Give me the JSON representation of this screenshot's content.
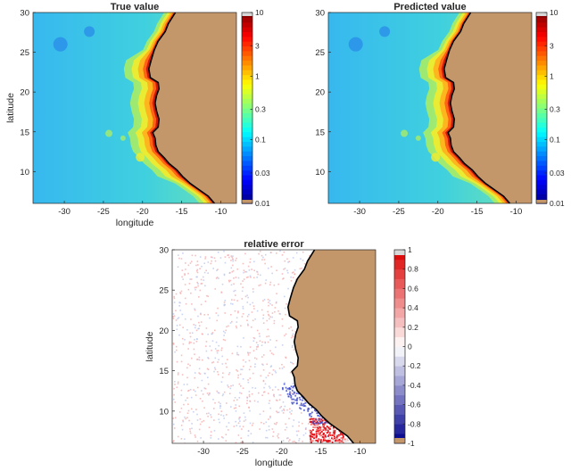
{
  "chart_data": [
    {
      "type": "heatmap",
      "title": "True value",
      "xlabel": "longitude",
      "ylabel": "latitude",
      "xlim": [
        -34,
        -8
      ],
      "ylim": [
        6,
        30
      ],
      "x_ticks": [
        -30,
        -25,
        -20,
        -15,
        -10
      ],
      "y_ticks": [
        10,
        15,
        20,
        25,
        30
      ],
      "colorbar": {
        "scale": "log",
        "ticks": [
          0.01,
          0.03,
          0.1,
          0.3,
          1,
          3,
          10
        ],
        "tick_labels": [
          "0.01",
          "0.03",
          "0.1",
          "0.3",
          "1",
          "3",
          "10"
        ],
        "colormap": "jet"
      },
      "land_color": "#c4976b",
      "coastline_color": "#000000"
    },
    {
      "type": "heatmap",
      "title": "Predicted value",
      "xlabel": "",
      "ylabel": "",
      "xlim": [
        -34,
        -8
      ],
      "ylim": [
        6,
        30
      ],
      "x_ticks": [
        -30,
        -25,
        -20,
        -15,
        -10
      ],
      "y_ticks": [
        10,
        15,
        20,
        25,
        30
      ],
      "colorbar": {
        "scale": "log",
        "ticks": [
          0.01,
          0.03,
          0.1,
          0.3,
          1,
          3,
          10
        ],
        "tick_labels": [
          "0.01",
          "0.03",
          "0.1",
          "0.3",
          "1",
          "3",
          "10"
        ],
        "colormap": "jet"
      },
      "land_color": "#c4976b",
      "coastline_color": "#000000"
    },
    {
      "type": "heatmap",
      "title": "relative error",
      "xlabel": "longitude",
      "ylabel": "latitude",
      "xlim": [
        -34,
        -8
      ],
      "ylim": [
        6,
        30
      ],
      "x_ticks": [
        -30,
        -25,
        -20,
        -15,
        -10
      ],
      "y_ticks": [
        10,
        15,
        20,
        25,
        30
      ],
      "colorbar": {
        "scale": "linear",
        "ticks": [
          -1,
          -0.8,
          -0.6,
          -0.4,
          -0.2,
          0,
          0.2,
          0.4,
          0.6,
          0.8,
          1
        ],
        "tick_labels": [
          "-1",
          "-0.8",
          "-0.6",
          "-0.4",
          "-0.2",
          "0",
          "0.2",
          "0.4",
          "0.6",
          "0.8",
          "1"
        ],
        "colormap": "blue-white-red"
      },
      "land_color": "#c4976b",
      "coastline_color": "#000000"
    }
  ]
}
